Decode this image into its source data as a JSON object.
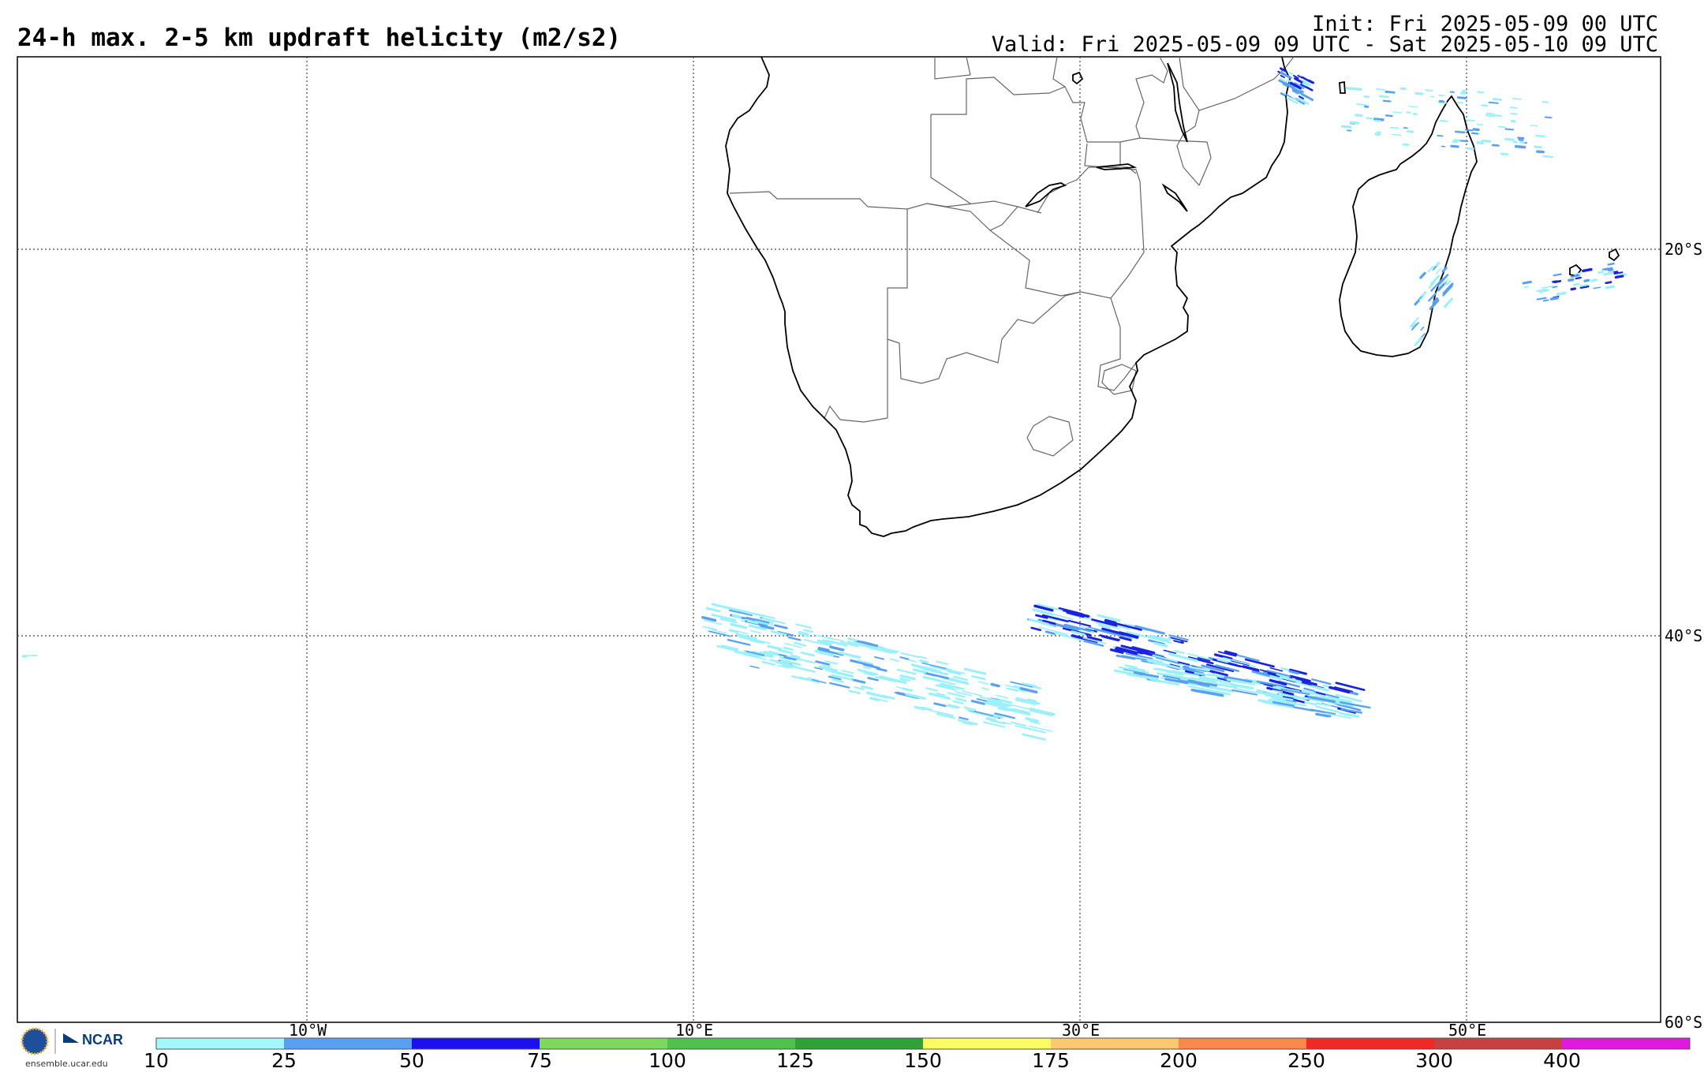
{
  "header": {
    "title": "24-h max. 2-5 km updraft helicity (m2/s2)",
    "init": "Init: Fri 2025-05-09 00 UTC",
    "valid": "Valid: Fri 2025-05-09 09 UTC - Sat 2025-05-10 09 UTC"
  },
  "grid": {
    "lon_labels": [
      "10°W",
      "10°E",
      "30°E",
      "50°E"
    ],
    "lat_labels": [
      "20°S",
      "40°S",
      "60°S"
    ]
  },
  "colorbar": {
    "labels": [
      "10",
      "25",
      "50",
      "75",
      "100",
      "125",
      "150",
      "175",
      "200",
      "250",
      "300",
      "400"
    ],
    "colors": [
      "#a4f8fc",
      "#5aa0f0",
      "#1c10f0",
      "#7ed860",
      "#50c050",
      "#30a038",
      "#fcfc60",
      "#fcc870",
      "#fc8850",
      "#f02828",
      "#c84040",
      "#e018e0"
    ]
  },
  "logo": {
    "org_left": "NSF",
    "org_right": "NCAR",
    "url": "ensemble.ucar.edu"
  },
  "map": {
    "region": "Southern Africa and South Atlantic / Indian Ocean",
    "colors": {
      "coast": "#000000",
      "border": "#555555",
      "grid": "#444444",
      "light": "#9cf0fa",
      "mid": "#5aa0f0",
      "dark": "#1a22e0"
    }
  }
}
